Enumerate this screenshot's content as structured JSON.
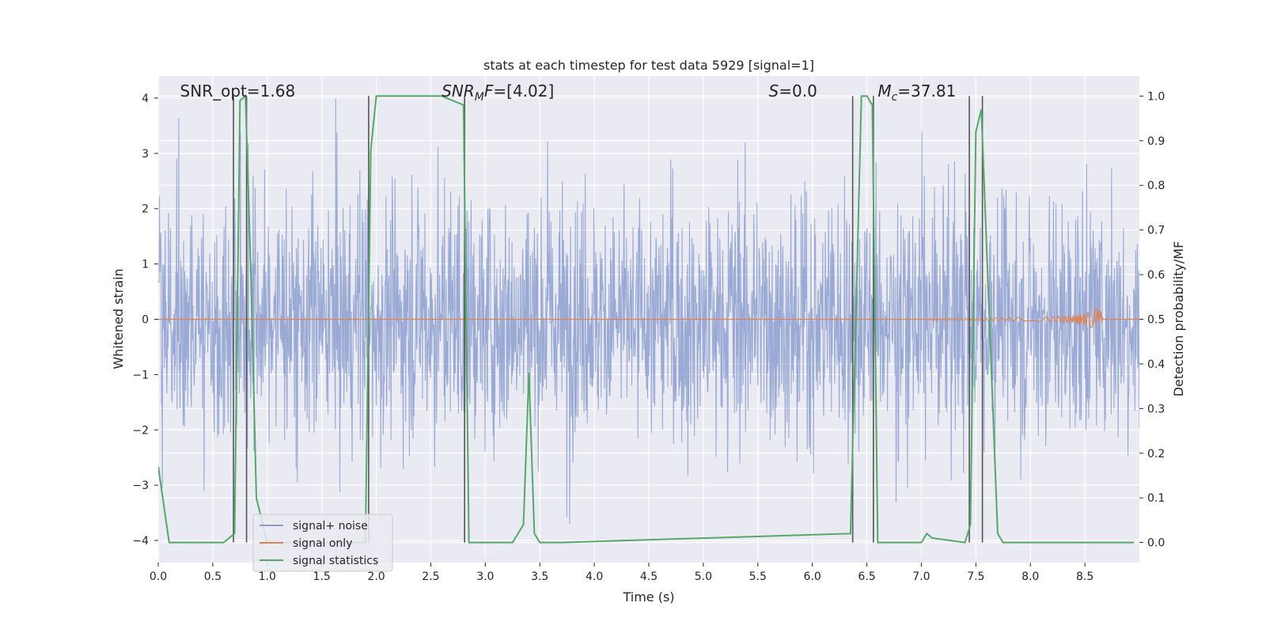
{
  "chart_data": {
    "type": "line",
    "title": "stats at each timestep for test data 5929 [signal=1]",
    "xlabel": "Time (s)",
    "ylabel": "Whitened strain",
    "ylabel_right": "Detection probability/MF",
    "xlim": [
      0.0,
      9.0
    ],
    "ylim": [
      -4.4,
      4.4
    ],
    "ylim_right": [
      -0.045,
      1.045
    ],
    "xticks": [
      "0.0",
      "0.5",
      "1.0",
      "1.5",
      "2.0",
      "2.5",
      "3.0",
      "3.5",
      "4.0",
      "4.5",
      "5.0",
      "5.5",
      "6.0",
      "6.5",
      "7.0",
      "7.5",
      "8.0",
      "8.5"
    ],
    "yticks": [
      "4",
      "3",
      "2",
      "1",
      "0",
      "−1",
      "−2",
      "−3",
      "−4"
    ],
    "yticks_right": [
      "1.0",
      "0.9",
      "0.8",
      "0.7",
      "0.6",
      "0.5",
      "0.4",
      "0.3",
      "0.2",
      "0.1",
      "0.0"
    ],
    "grid": true,
    "legend_position": "lower-left",
    "annotations": [
      {
        "id": "snr-opt",
        "prefix": "SNR_opt=1.68",
        "sub": "",
        "suffix": "",
        "x": 0.2
      },
      {
        "id": "snr-mf",
        "prefix": "SNR",
        "sub": "M",
        "suffix": "F=[4.02]",
        "x": 2.6
      },
      {
        "id": "s",
        "prefix": "S",
        "sub": "",
        "suffix": "=0.0",
        "x": 5.6
      },
      {
        "id": "mc",
        "prefix": "M",
        "sub": "c",
        "suffix": "=37.81",
        "x": 6.6
      }
    ],
    "series": [
      {
        "name": "signal+ noise",
        "color": "#8c9fd0",
        "description": "whitened noise, amplitude roughly −3.7 to 4.0, 4096 Hz over 9 s",
        "amplitude_range": [
          -3.7,
          4.0
        ]
      },
      {
        "name": "signal only",
        "color": "#dd8452",
        "chirp_merger_x": 8.65,
        "chirp_peak_amplitude": 0.45
      },
      {
        "name": "signal statistics",
        "color": "#55a868",
        "axis": "right",
        "x": [
          0.0,
          0.1,
          0.2,
          0.6,
          0.7,
          0.75,
          0.8,
          0.85,
          0.9,
          1.0,
          1.2,
          1.9,
          1.95,
          2.0,
          2.6,
          2.8,
          2.85,
          2.9,
          3.25,
          3.35,
          3.4,
          3.45,
          3.5,
          3.7,
          6.35,
          6.45,
          6.5,
          6.55,
          6.6,
          6.65,
          6.7,
          7.0,
          7.05,
          7.1,
          7.4,
          7.45,
          7.5,
          7.55,
          7.7,
          7.75,
          8.95
        ],
        "y": [
          0.17,
          0.0,
          0.0,
          0.0,
          0.02,
          0.99,
          1.0,
          0.6,
          0.1,
          0.0,
          0.0,
          0.0,
          0.88,
          1.0,
          1.0,
          0.98,
          0.0,
          0.0,
          0.0,
          0.04,
          0.38,
          0.02,
          0.0,
          0.0,
          0.02,
          1.0,
          1.0,
          0.98,
          0.0,
          0.0,
          0.0,
          0.0,
          0.02,
          0.01,
          0.0,
          0.04,
          0.92,
          0.97,
          0.02,
          0.0,
          0.0
        ]
      }
    ],
    "vertical_markers": [
      0.69,
      0.81,
      1.93,
      2.81,
      6.37,
      6.56,
      7.44,
      7.56
    ]
  }
}
